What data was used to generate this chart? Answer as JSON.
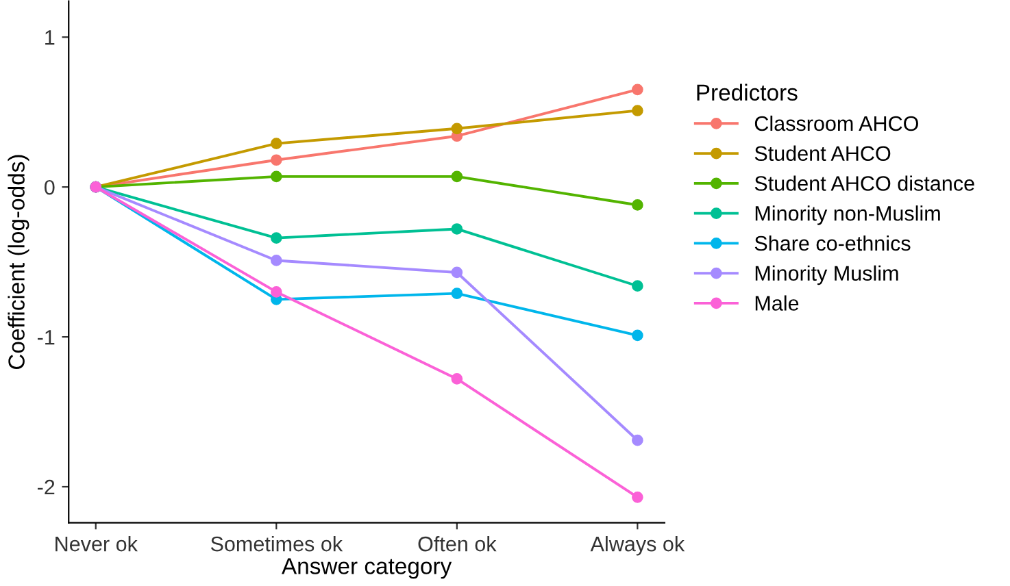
{
  "chart_data": {
    "type": "line",
    "xlabel": "Answer category",
    "ylabel": "Coefficient (log-odds)",
    "legend_title": "Predictors",
    "legend": "right",
    "grid": false,
    "marker": "circle",
    "line_style": "solid",
    "categories": [
      "Never ok",
      "Sometimes ok",
      "Often ok",
      "Always ok"
    ],
    "ylim": [
      -2.24,
      1.24
    ],
    "yticks": [
      -2,
      -1,
      0,
      1
    ],
    "series": [
      {
        "name": "Classroom AHCO",
        "color": "#F8766D",
        "values": [
          0,
          0.18,
          0.34,
          0.65
        ]
      },
      {
        "name": "Student AHCO",
        "color": "#C49A00",
        "values": [
          0,
          0.29,
          0.39,
          0.51
        ]
      },
      {
        "name": "Student AHCO distance",
        "color": "#53B400",
        "values": [
          0,
          0.07,
          0.07,
          -0.12
        ]
      },
      {
        "name": "Minority non-Muslim",
        "color": "#00C094",
        "values": [
          0,
          -0.34,
          -0.28,
          -0.66
        ]
      },
      {
        "name": "Share co-ethnics",
        "color": "#00B6EB",
        "values": [
          0,
          -0.75,
          -0.71,
          -0.99
        ]
      },
      {
        "name": "Minority Muslim",
        "color": "#A58AFF",
        "values": [
          0,
          -0.49,
          -0.57,
          -1.69
        ]
      },
      {
        "name": "Male",
        "color": "#FB61D7",
        "values": [
          0,
          -0.7,
          -1.28,
          -2.07
        ]
      }
    ]
  }
}
